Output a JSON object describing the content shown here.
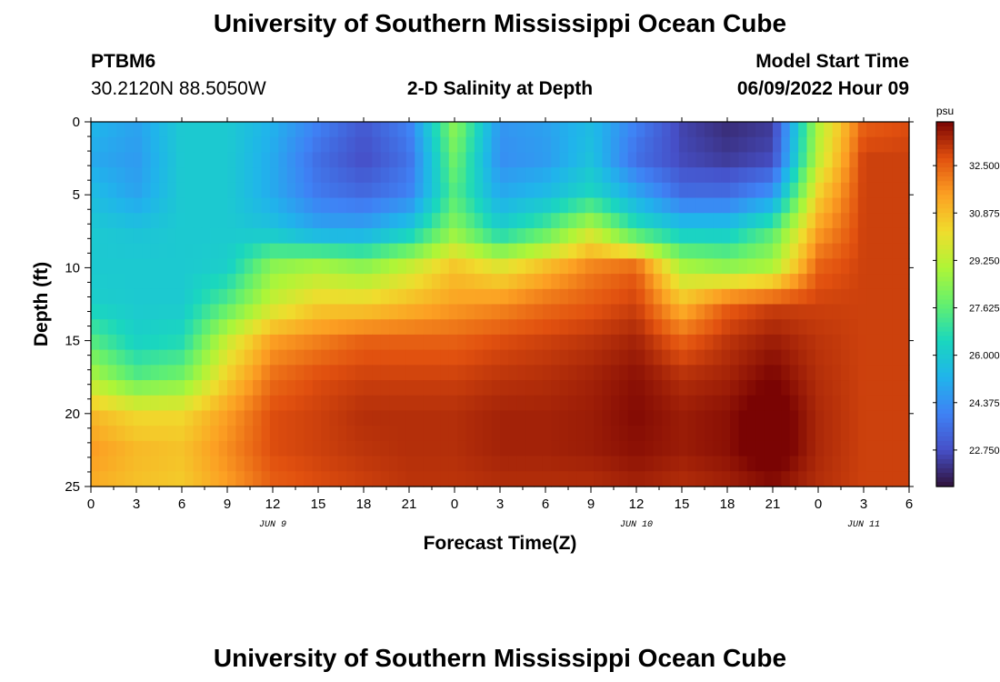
{
  "page_title": "University of Southern Mississippi Ocean Cube",
  "station": {
    "id": "PTBM6",
    "coords": "30.2120N  88.5050W"
  },
  "model_start": {
    "label": "Model Start Time",
    "value": "06/09/2022 Hour 09"
  },
  "footer_title": "University of Southern Mississippi Ocean Cube",
  "chart_data": {
    "type": "heatmap",
    "title": "2-D Salinity at Depth",
    "xlabel": "Forecast Time(Z)",
    "ylabel": "Depth (ft)",
    "x_unit": "hours since 00Z JUN 9",
    "xlim": [
      0,
      54
    ],
    "ylim": [
      0,
      25
    ],
    "y_inverted": true,
    "x_ticks": [
      0,
      3,
      6,
      9,
      12,
      15,
      18,
      21,
      24,
      27,
      30,
      33,
      36,
      39,
      42,
      45,
      48,
      51,
      54
    ],
    "x_tick_labels": [
      "0",
      "3",
      "6",
      "9",
      "12",
      "15",
      "18",
      "21",
      "0",
      "3",
      "6",
      "9",
      "12",
      "15",
      "18",
      "21",
      "0",
      "3",
      "6"
    ],
    "y_ticks": [
      0,
      5,
      10,
      15,
      20,
      25
    ],
    "y_tick_labels": [
      "0",
      "5",
      "10",
      "15",
      "20",
      "25"
    ],
    "date_labels": [
      {
        "x": 12,
        "text": "JUN 9"
      },
      {
        "x": 36,
        "text": "JUN 10"
      },
      {
        "x": 51,
        "text": "JUN 11"
      }
    ],
    "colorbar": {
      "unit": "psu",
      "min": 21.5,
      "max": 34.0,
      "ticks": [
        32.5,
        30.875,
        29.25,
        27.625,
        26.0,
        24.375,
        22.75
      ],
      "tick_labels": [
        "32.500",
        "30.875",
        "29.250",
        "27.625",
        "26.000",
        "24.375",
        "22.750"
      ]
    },
    "salinity_grid": {
      "depths": [
        0,
        2.5,
        5,
        7.5,
        10,
        12.5,
        15,
        17.5,
        20,
        22.5,
        25
      ],
      "hours": [
        0,
        3,
        6,
        9,
        12,
        15,
        18,
        21,
        24,
        27,
        30,
        33,
        36,
        39,
        42,
        45,
        48,
        51,
        54
      ],
      "values": [
        [
          25.4,
          24.8,
          26.0,
          26.0,
          25.2,
          24.0,
          23.0,
          24.0,
          28.5,
          24.5,
          24.8,
          25.5,
          24.0,
          22.5,
          22.0,
          22.3,
          29.0,
          32.5,
          32.8
        ],
        [
          25.0,
          24.6,
          26.0,
          26.0,
          25.0,
          23.5,
          22.7,
          23.6,
          28.0,
          24.3,
          24.6,
          25.7,
          23.5,
          22.6,
          22.3,
          22.6,
          29.3,
          33.0,
          33.0
        ],
        [
          25.6,
          24.8,
          26.0,
          26.0,
          25.0,
          23.8,
          23.4,
          24.0,
          27.5,
          25.0,
          25.5,
          26.5,
          25.0,
          23.5,
          23.5,
          24.5,
          30.5,
          33.0,
          33.0
        ],
        [
          26.0,
          25.8,
          26.0,
          26.0,
          25.8,
          25.0,
          25.0,
          26.0,
          28.5,
          26.3,
          27.5,
          29.5,
          27.0,
          26.0,
          26.0,
          27.5,
          31.5,
          33.0,
          33.0
        ],
        [
          26.0,
          26.0,
          26.0,
          26.2,
          28.5,
          29.0,
          28.5,
          29.5,
          30.8,
          30.0,
          31.0,
          32.0,
          32.5,
          29.0,
          28.5,
          29.0,
          32.5,
          33.0,
          33.0
        ],
        [
          26.2,
          26.0,
          26.0,
          27.5,
          29.5,
          30.5,
          30.5,
          31.0,
          31.5,
          31.8,
          32.3,
          32.6,
          33.0,
          31.0,
          32.5,
          33.0,
          33.0,
          33.0,
          33.0
        ],
        [
          27.5,
          26.3,
          26.6,
          29.5,
          31.5,
          32.0,
          32.5,
          32.5,
          32.5,
          32.8,
          33.0,
          33.2,
          33.5,
          32.5,
          33.2,
          33.6,
          33.2,
          33.0,
          33.0
        ],
        [
          29.0,
          27.5,
          28.0,
          30.5,
          32.3,
          32.8,
          33.0,
          33.0,
          33.0,
          33.2,
          33.3,
          33.5,
          33.8,
          33.3,
          33.5,
          34.0,
          33.3,
          33.0,
          33.0
        ],
        [
          31.0,
          30.3,
          30.3,
          31.5,
          32.8,
          33.0,
          33.3,
          33.3,
          33.3,
          33.5,
          33.5,
          33.6,
          33.9,
          33.6,
          33.8,
          34.4,
          33.4,
          33.0,
          33.0
        ],
        [
          31.6,
          31.0,
          30.8,
          31.8,
          32.8,
          33.0,
          33.2,
          33.3,
          33.3,
          33.5,
          33.5,
          33.6,
          33.8,
          33.6,
          33.8,
          34.4,
          33.4,
          33.0,
          33.0
        ],
        [
          31.2,
          30.8,
          30.6,
          31.5,
          32.5,
          32.8,
          33.0,
          33.2,
          33.2,
          33.3,
          33.3,
          33.3,
          33.5,
          33.3,
          33.5,
          33.8,
          33.3,
          33.0,
          33.0
        ]
      ]
    }
  }
}
